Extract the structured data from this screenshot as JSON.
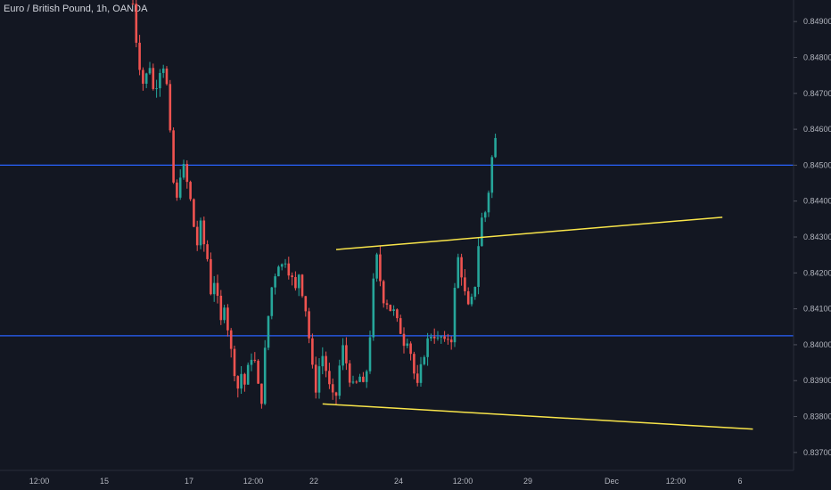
{
  "header": {
    "title": "Euro / British Pound, 1h, OANDA"
  },
  "colors": {
    "background": "#131722",
    "up": "#26a69a",
    "down": "#ef5350",
    "hline": "#2962ff",
    "trendline": "#f9e54a",
    "axis_text": "#b2b5be"
  },
  "chart_data": {
    "type": "candlestick",
    "title": "Euro / British Pound, 1h, OANDA",
    "y_axis": {
      "side": "right",
      "ylim": [
        0.8365,
        0.8496
      ],
      "ticks": [
        "0.84900",
        "0.84800",
        "0.84700",
        "0.84600",
        "0.84500",
        "0.84400",
        "0.84300",
        "0.84200",
        "0.84100",
        "0.84000",
        "0.83900",
        "0.83800",
        "0.83700"
      ]
    },
    "x_axis": {
      "ticks": [
        "12:00",
        "15",
        "17",
        "12:00",
        "22",
        "24",
        "12:00",
        "29",
        "Dec",
        "12:00",
        "6"
      ]
    },
    "grid": false,
    "horizontal_lines": [
      0.845,
      0.84025
    ],
    "trendlines": [
      {
        "name": "upper",
        "points": [
          [
            60,
            0.84265
          ],
          [
            174,
            0.84355
          ]
        ]
      },
      {
        "name": "lower",
        "points": [
          [
            56,
            0.83835
          ],
          [
            183,
            0.83765
          ]
        ]
      }
    ],
    "price_path": [
      [
        0,
        0.8495
      ],
      [
        1,
        0.8485
      ],
      [
        2,
        0.8478
      ],
      [
        3,
        0.8473
      ],
      [
        4,
        0.8475
      ],
      [
        5,
        0.8478
      ],
      [
        6,
        0.8471
      ],
      [
        7,
        0.8473
      ],
      [
        8,
        0.8477
      ],
      [
        9,
        0.8478
      ],
      [
        10,
        0.8472
      ],
      [
        11,
        0.8458
      ],
      [
        12,
        0.8445
      ],
      [
        13,
        0.844
      ],
      [
        14,
        0.8448
      ],
      [
        15,
        0.8449
      ],
      [
        16,
        0.8445
      ],
      [
        17,
        0.844
      ],
      [
        18,
        0.8433
      ],
      [
        19,
        0.8428
      ],
      [
        20,
        0.8433
      ],
      [
        21,
        0.8428
      ],
      [
        22,
        0.8424
      ],
      [
        23,
        0.8415
      ],
      [
        24,
        0.8418
      ],
      [
        25,
        0.8412
      ],
      [
        26,
        0.8406
      ],
      [
        27,
        0.8412
      ],
      [
        28,
        0.8405
      ],
      [
        29,
        0.8398
      ],
      [
        30,
        0.8393
      ],
      [
        31,
        0.8388
      ],
      [
        32,
        0.8392
      ],
      [
        33,
        0.8389
      ],
      [
        34,
        0.8393
      ],
      [
        35,
        0.8397
      ],
      [
        36,
        0.8395
      ],
      [
        37,
        0.8388
      ],
      [
        38,
        0.8385
      ],
      [
        39,
        0.8398
      ],
      [
        40,
        0.8408
      ],
      [
        41,
        0.8416
      ],
      [
        42,
        0.842
      ],
      [
        43,
        0.8423
      ],
      [
        44,
        0.8422
      ],
      [
        45,
        0.8424
      ],
      [
        46,
        0.8421
      ],
      [
        47,
        0.8418
      ],
      [
        48,
        0.8415
      ],
      [
        49,
        0.842
      ],
      [
        50,
        0.8415
      ],
      [
        51,
        0.841
      ],
      [
        52,
        0.8402
      ],
      [
        53,
        0.8393
      ],
      [
        54,
        0.8388
      ],
      [
        55,
        0.8394
      ],
      [
        56,
        0.8397
      ],
      [
        57,
        0.8393
      ],
      [
        58,
        0.8388
      ],
      [
        59,
        0.8385
      ],
      [
        60,
        0.8386
      ],
      [
        61,
        0.8394
      ],
      [
        62,
        0.8399
      ],
      [
        63,
        0.8395
      ],
      [
        64,
        0.8391
      ],
      [
        65,
        0.8388
      ],
      [
        66,
        0.8389
      ],
      [
        67,
        0.8391
      ],
      [
        68,
        0.8388
      ],
      [
        69,
        0.8393
      ],
      [
        70,
        0.8403
      ],
      [
        71,
        0.8417
      ],
      [
        72,
        0.8424
      ],
      [
        73,
        0.8418
      ],
      [
        74,
        0.8413
      ],
      [
        75,
        0.8412
      ],
      [
        76,
        0.841
      ],
      [
        77,
        0.8409
      ],
      [
        78,
        0.8406
      ],
      [
        79,
        0.8404
      ],
      [
        80,
        0.8401
      ],
      [
        81,
        0.8402
      ],
      [
        82,
        0.8398
      ],
      [
        83,
        0.8392
      ],
      [
        84,
        0.8388
      ],
      [
        85,
        0.8393
      ],
      [
        86,
        0.8398
      ],
      [
        87,
        0.8401
      ],
      [
        88,
        0.8403
      ],
      [
        89,
        0.8403
      ],
      [
        90,
        0.8401
      ],
      [
        91,
        0.8402
      ],
      [
        92,
        0.84
      ],
      [
        93,
        0.8402
      ],
      [
        94,
        0.8402
      ],
      [
        95,
        0.8415
      ],
      [
        96,
        0.8424
      ],
      [
        97,
        0.842
      ],
      [
        98,
        0.8414
      ],
      [
        99,
        0.841
      ],
      [
        100,
        0.8412
      ],
      [
        101,
        0.8417
      ],
      [
        102,
        0.8428
      ],
      [
        103,
        0.8435
      ],
      [
        104,
        0.8437
      ],
      [
        105,
        0.8443
      ],
      [
        106,
        0.8452
      ],
      [
        107,
        0.8457
      ]
    ]
  }
}
